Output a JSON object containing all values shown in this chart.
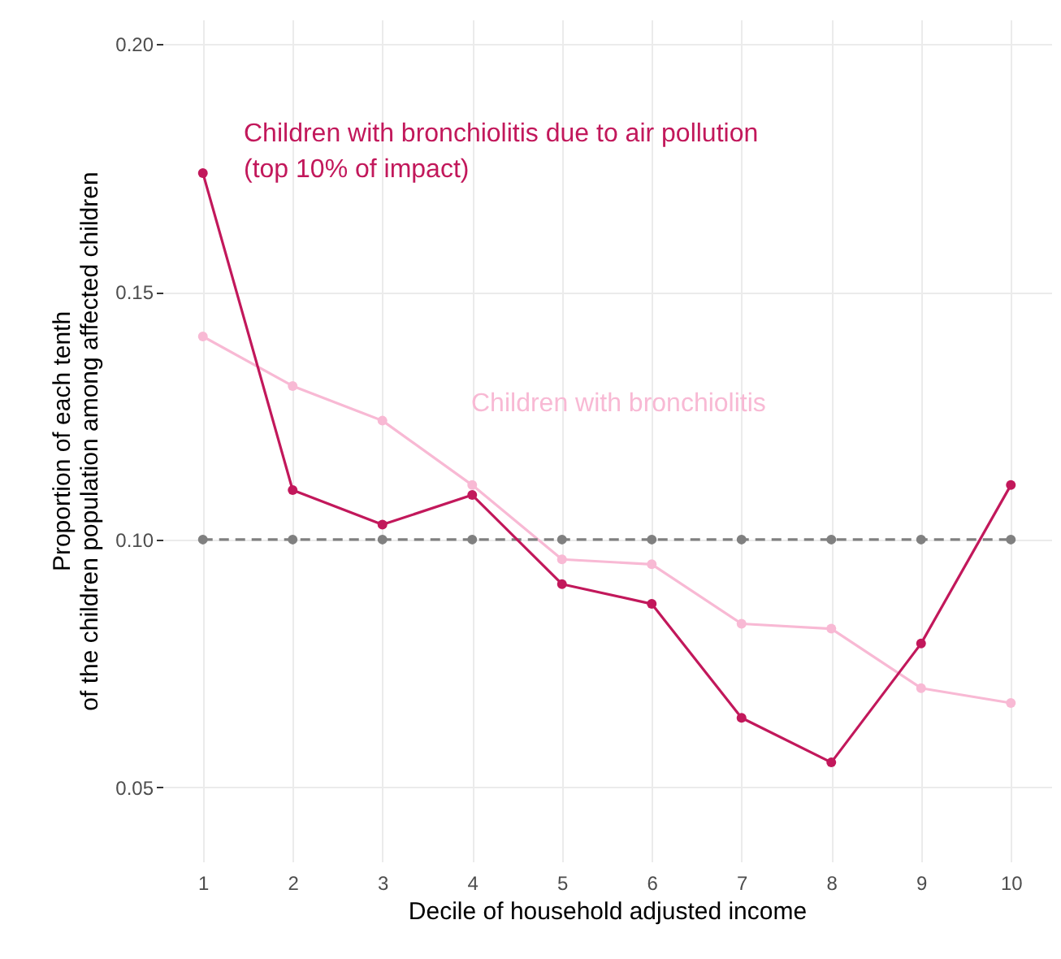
{
  "chart_data": {
    "type": "line",
    "xlabel": "Decile of household adjusted income",
    "ylabel": "Proportion of each tenth\nof the children population among affected children",
    "x": [
      1,
      2,
      3,
      4,
      5,
      6,
      7,
      8,
      9,
      10
    ],
    "series": [
      {
        "name": "Children with bronchiolitis",
        "color": "#f8b9d4",
        "values": [
          0.141,
          0.131,
          0.124,
          0.111,
          0.096,
          0.095,
          0.083,
          0.082,
          0.07,
          0.067
        ]
      },
      {
        "color": "#808080",
        "line_style": "dashed",
        "values": [
          0.1,
          0.1,
          0.1,
          0.1,
          0.1,
          0.1,
          0.1,
          0.1,
          0.1,
          0.1
        ]
      },
      {
        "name": "Children with bronchiolitis due to air pollution\n (top 10% of impact)",
        "color": "#c2185b",
        "values": [
          0.174,
          0.11,
          0.103,
          0.109,
          0.091,
          0.087,
          0.064,
          0.055,
          0.079,
          0.111
        ]
      }
    ],
    "xlim": [
      0.55,
      10.45
    ],
    "xticks": [
      1,
      2,
      3,
      4,
      5,
      6,
      7,
      8,
      9,
      10
    ],
    "ylim": [
      0.035,
      0.205
    ],
    "yticks": [
      {
        "value": 0.05,
        "label": "0.05"
      },
      {
        "value": 0.1,
        "label": "0.10"
      },
      {
        "value": 0.15,
        "label": "0.15"
      },
      {
        "value": 0.2,
        "label": "0.20"
      }
    ],
    "grid": true,
    "marker": "circle"
  }
}
